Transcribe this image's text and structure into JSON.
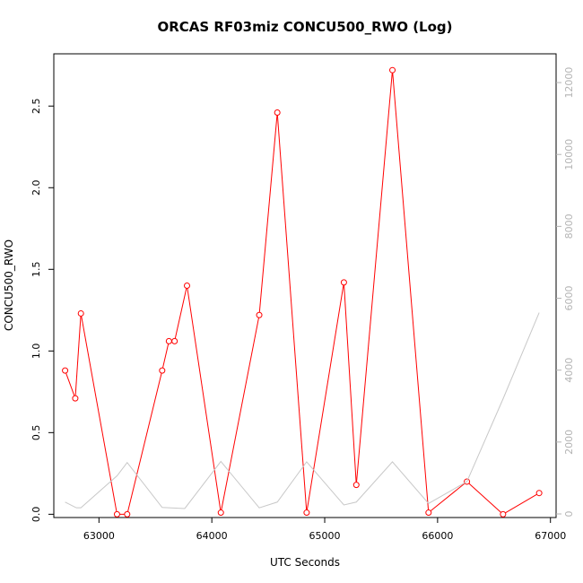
{
  "chart_data": {
    "type": "line",
    "title": "ORCAS RF03miz CONCU500_RWO (Log)",
    "xlabel": "UTC Seconds",
    "ylabel": "CONCU500_RWO",
    "xlim": [
      62600,
      67050
    ],
    "ylim": [
      -0.02,
      2.82
    ],
    "y2lim": [
      -100,
      12800
    ],
    "x_ticks": [
      63000,
      64000,
      65000,
      66000,
      67000
    ],
    "y_ticks": [
      0.0,
      0.5,
      1.0,
      1.5,
      2.0,
      2.5
    ],
    "y_tick_labels": [
      "0.0",
      "0.5",
      "1.0",
      "1.5",
      "2.0",
      "2.5"
    ],
    "y2_ticks": [
      0,
      2000,
      4000,
      6000,
      8000,
      10000,
      12000
    ],
    "grid": false,
    "series": [
      {
        "color": "#ff0000",
        "marker": "circle",
        "axis": "left",
        "x": [
          62700,
          62790,
          62840,
          63160,
          63250,
          63560,
          63620,
          63670,
          63780,
          64080,
          64420,
          64580,
          64840,
          65170,
          65280,
          65600,
          65920,
          66260,
          66580,
          66900
        ],
        "y": [
          0.88,
          0.71,
          1.23,
          0.0,
          0.0,
          0.88,
          1.06,
          1.06,
          1.4,
          0.01,
          1.22,
          2.46,
          0.01,
          1.42,
          0.18,
          2.72,
          0.01,
          0.2,
          0.0,
          0.13
        ]
      },
      {
        "color": "#c8c8c8",
        "marker": "none",
        "axis": "right",
        "x": [
          62700,
          62800,
          62840,
          63160,
          63250,
          63560,
          63760,
          64080,
          64420,
          64580,
          64840,
          65170,
          65280,
          65600,
          65920,
          66260,
          66580,
          66900
        ],
        "y": [
          330,
          170,
          170,
          1060,
          1430,
          180,
          150,
          1460,
          170,
          330,
          1450,
          250,
          330,
          1450,
          290,
          900,
          3200,
          5600
        ]
      }
    ]
  }
}
